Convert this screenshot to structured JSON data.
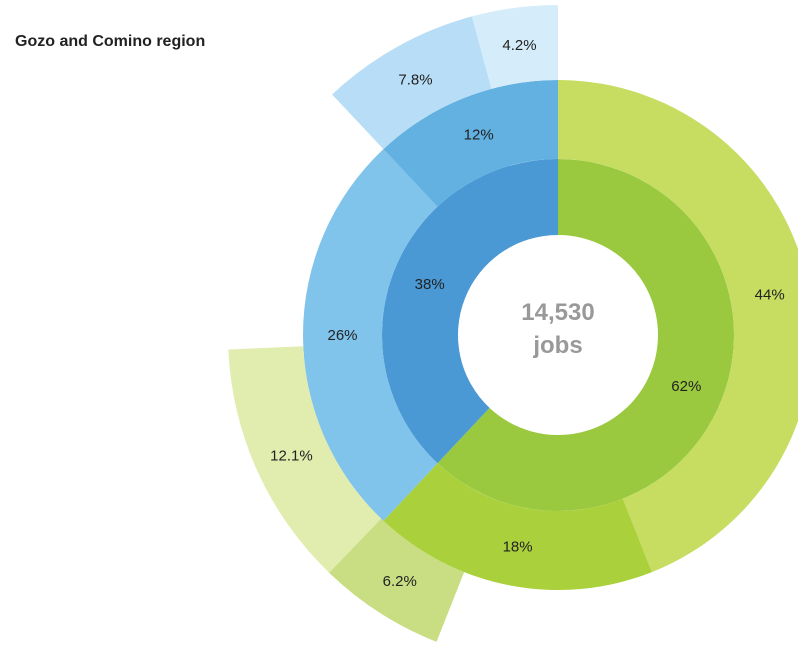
{
  "chart_data": {
    "type": "sunburst",
    "title": "Gozo and Comino region",
    "center": {
      "line1": "14,530",
      "line2": "jobs"
    },
    "rings": [
      {
        "ring": "inner",
        "segments": [
          {
            "value": 62,
            "label": "62%",
            "color": "#9ac940"
          },
          {
            "value": 38,
            "label": "38%",
            "color": "#4a98d4"
          }
        ]
      },
      {
        "ring": "middle",
        "segments": [
          {
            "value": 44,
            "label": "44%",
            "color": "#c6dd62"
          },
          {
            "value": 18,
            "label": "18%",
            "color": "#aad13b"
          },
          {
            "value": 26,
            "label": "26%",
            "color": "#80c3eb"
          },
          {
            "value": 12,
            "label": "12%",
            "color": "#62b1e1"
          }
        ]
      },
      {
        "ring": "outer",
        "segments": [
          {
            "value": 6.2,
            "label": "6.2%",
            "color": "#c9dd82",
            "start": 56.0,
            "end": 62.2
          },
          {
            "value": 12.1,
            "label": "12.1%",
            "color": "#e1ecaf",
            "start": 62.2,
            "end": 74.3
          },
          {
            "value": 7.8,
            "label": "7.8%",
            "color": "#b8ddf6",
            "start": 88.0,
            "end": 95.8
          },
          {
            "value": 4.2,
            "label": "4.2%",
            "color": "#d5ecfb",
            "start": 95.8,
            "end": 100.0
          }
        ]
      }
    ]
  }
}
